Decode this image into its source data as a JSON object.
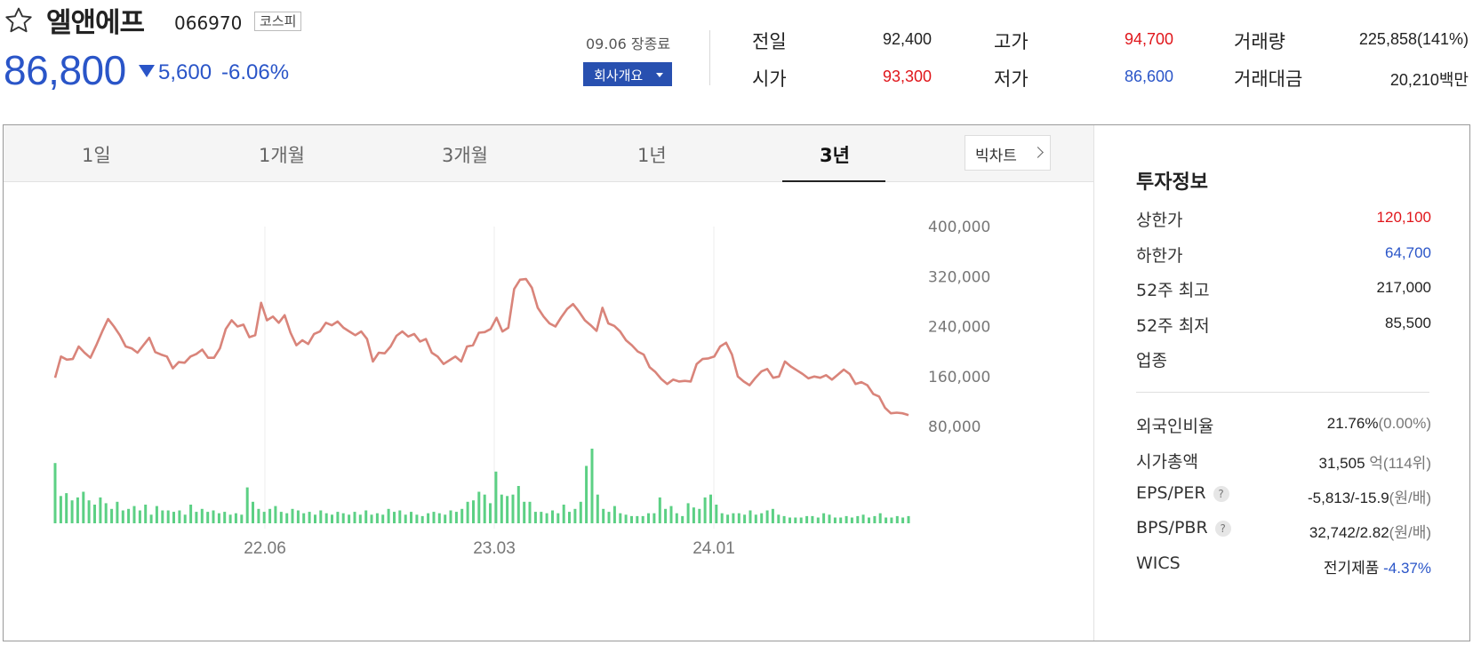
{
  "stock": {
    "name": "엘앤에프",
    "code": "066970",
    "market": "코스피",
    "price": "86,800",
    "change_amount": "5,600",
    "change_pct": "-6.06%",
    "change_direction": "down",
    "close_date": "09.06 장종료",
    "company_button": "회사개요"
  },
  "quotes": {
    "prev_close_label": "전일",
    "prev_close": "92,400",
    "open_label": "시가",
    "open": "93,300",
    "high_label": "고가",
    "high": "94,700",
    "low_label": "저가",
    "low": "86,600",
    "volume_label": "거래량",
    "volume": "225,858(141%)",
    "amount_label": "거래대금",
    "amount": "20,210백만"
  },
  "tabs": [
    {
      "label": "1일"
    },
    {
      "label": "1개월"
    },
    {
      "label": "3개월"
    },
    {
      "label": "1년"
    },
    {
      "label": "3년",
      "active": true
    }
  ],
  "bigchart_label": "빅차트",
  "chart_data": {
    "type": "line",
    "x_ticks": [
      "22.06",
      "23.03",
      "24.01"
    ],
    "y_ticks": [
      "400,000",
      "320,000",
      "240,000",
      "160,000",
      "80,000"
    ],
    "y_tick_values": [
      400000,
      320000,
      240000,
      160000,
      80000
    ],
    "ylim": [
      80000,
      400000
    ],
    "price_series": [
      158000,
      192000,
      187000,
      188000,
      208000,
      198000,
      190000,
      210000,
      232000,
      252000,
      240000,
      226000,
      208000,
      205000,
      198000,
      210000,
      222000,
      199000,
      195000,
      192000,
      173000,
      183000,
      182000,
      192000,
      196000,
      203000,
      190000,
      190000,
      205000,
      236000,
      250000,
      240000,
      243000,
      223000,
      226000,
      278000,
      250000,
      256000,
      246000,
      258000,
      230000,
      210000,
      218000,
      212000,
      228000,
      232000,
      246000,
      242000,
      248000,
      238000,
      232000,
      226000,
      232000,
      220000,
      184000,
      198000,
      197000,
      208000,
      225000,
      232000,
      224000,
      228000,
      216000,
      220000,
      198000,
      192000,
      180000,
      186000,
      192000,
      184000,
      208000,
      210000,
      230000,
      231000,
      236000,
      254000,
      232000,
      238000,
      300000,
      315000,
      316000,
      302000,
      270000,
      256000,
      245000,
      240000,
      255000,
      268000,
      276000,
      264000,
      250000,
      242000,
      233000,
      270000,
      245000,
      241000,
      232000,
      218000,
      210000,
      200000,
      195000,
      175000,
      167000,
      156000,
      148000,
      155000,
      152000,
      153000,
      152000,
      180000,
      188000,
      189000,
      192000,
      208000,
      214000,
      195000,
      160000,
      152000,
      146000,
      158000,
      168000,
      172000,
      158000,
      160000,
      184000,
      176000,
      170000,
      164000,
      157000,
      160000,
      158000,
      162000,
      155000,
      163000,
      171000,
      164000,
      148000,
      151000,
      146000,
      132000,
      128000,
      110000,
      101000,
      102000,
      101000,
      98000
    ],
    "volume_series": [
      84,
      38,
      42,
      32,
      36,
      44,
      32,
      26,
      36,
      28,
      20,
      30,
      18,
      20,
      24,
      18,
      26,
      12,
      24,
      18,
      18,
      16,
      18,
      12,
      26,
      16,
      20,
      16,
      18,
      14,
      16,
      12,
      14,
      12,
      50,
      30,
      20,
      16,
      20,
      24,
      16,
      14,
      20,
      18,
      14,
      16,
      12,
      18,
      14,
      12,
      16,
      14,
      12,
      16,
      12,
      18,
      12,
      14,
      12,
      20,
      16,
      18,
      12,
      16,
      12,
      10,
      14,
      16,
      14,
      12,
      18,
      16,
      20,
      30,
      32,
      44,
      40,
      28,
      72,
      40,
      38,
      40,
      52,
      30,
      30,
      16,
      16,
      14,
      18,
      14,
      26,
      16,
      20,
      30,
      80,
      104,
      40,
      20,
      16,
      24,
      14,
      12,
      10,
      10,
      10,
      14,
      14,
      36,
      20,
      24,
      14,
      10,
      28,
      22,
      20,
      36,
      40,
      26,
      14,
      12,
      14,
      14,
      12,
      18,
      12,
      14,
      18,
      20,
      12,
      10,
      8,
      8,
      8,
      10,
      10,
      8,
      14,
      12,
      8,
      8,
      10,
      8,
      10,
      12,
      8,
      10,
      14,
      8,
      8,
      10,
      8,
      10
    ]
  },
  "invest": {
    "title": "투자정보",
    "upper_limit_label": "상한가",
    "upper_limit": "120,100",
    "lower_limit_label": "하한가",
    "lower_limit": "64,700",
    "high52_label": "52주 최고",
    "high52": "217,000",
    "low52_label": "52주 최저",
    "low52": "85,500",
    "industry_label": "업종",
    "foreign_label": "외국인비율",
    "foreign": "21.76%",
    "foreign_change": "(0.00%)",
    "marketcap_label": "시가총액",
    "marketcap": "31,505",
    "marketcap_unit": "억",
    "marketcap_rank": "(114위)",
    "eps_label": "EPS/PER",
    "eps": "-5,813/-15.9",
    "eps_unit": "(원/배)",
    "bps_label": "BPS/PBR",
    "bps": "32,742/2.82",
    "bps_unit": "(원/배)",
    "wics_label": "WICS",
    "wics": "전기제품",
    "wics_change": "-4.37%"
  },
  "colors": {
    "price_down": "#2a55c8",
    "price_up": "#e0161b",
    "line": "#d9847a",
    "volume": "#5cd084",
    "button": "#2850b0"
  }
}
